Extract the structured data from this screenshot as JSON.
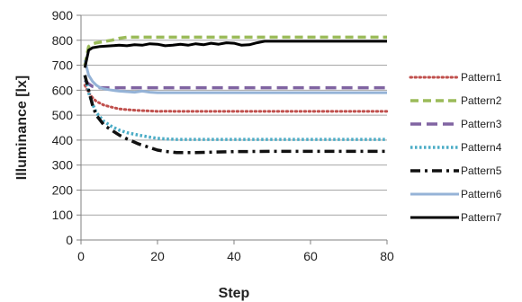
{
  "chart_data": {
    "type": "line",
    "xlabel": "Step",
    "ylabel": "Illuminance [lx]",
    "xlim": [
      0,
      80
    ],
    "ylim": [
      0,
      900
    ],
    "xticks": [
      0,
      20,
      40,
      60,
      80
    ],
    "yticks": [
      0,
      100,
      200,
      300,
      400,
      500,
      600,
      700,
      800,
      900
    ],
    "grid": "horizontal",
    "legend_position": "right",
    "series": [
      {
        "name": "Pattern1",
        "color": "#c0504d",
        "dash": "dotted",
        "x": [
          1,
          2,
          3,
          4,
          6,
          8,
          10,
          12,
          14,
          16,
          18,
          20,
          22,
          25,
          30,
          35,
          40,
          50,
          60,
          70,
          80
        ],
        "y": [
          620,
          590,
          570,
          555,
          540,
          532,
          525,
          522,
          520,
          518,
          517,
          515,
          516,
          515,
          515,
          515,
          515,
          515,
          515,
          515,
          515
        ]
      },
      {
        "name": "Pattern2",
        "color": "#9bbb59",
        "dash": "dashed",
        "x": [
          1,
          2,
          3,
          4,
          6,
          8,
          10,
          12,
          14,
          16,
          20,
          30,
          40,
          50,
          60,
          70,
          80
        ],
        "y": [
          700,
          775,
          785,
          790,
          795,
          800,
          808,
          812,
          812,
          812,
          812,
          812,
          812,
          812,
          812,
          812,
          812
        ]
      },
      {
        "name": "Pattern3",
        "color": "#8064a2",
        "dash": "longdash",
        "x": [
          1,
          2,
          3,
          4,
          5,
          6,
          8,
          10,
          20,
          30,
          40,
          50,
          60,
          70,
          80
        ],
        "y": [
          640,
          625,
          615,
          612,
          610,
          610,
          610,
          610,
          610,
          610,
          610,
          610,
          610,
          610,
          610
        ]
      },
      {
        "name": "Pattern4",
        "color": "#4bacc6",
        "dash": "dotted-thick",
        "x": [
          1,
          2,
          3,
          4,
          6,
          8,
          10,
          12,
          15,
          18,
          20,
          22,
          25,
          30,
          40,
          50,
          60,
          70,
          80
        ],
        "y": [
          660,
          590,
          545,
          510,
          475,
          455,
          440,
          430,
          420,
          412,
          407,
          405,
          403,
          403,
          403,
          403,
          403,
          403,
          403
        ]
      },
      {
        "name": "Pattern5",
        "color": "#111111",
        "dash": "dashdot",
        "x": [
          1,
          2,
          3,
          4,
          6,
          8,
          10,
          12,
          15,
          18,
          20,
          22,
          25,
          30,
          35,
          40,
          50,
          60,
          70,
          80
        ],
        "y": [
          660,
          600,
          540,
          500,
          460,
          440,
          420,
          405,
          385,
          370,
          360,
          355,
          350,
          350,
          352,
          354,
          355,
          355,
          355,
          355
        ]
      },
      {
        "name": "Pattern6",
        "color": "#95b3d7",
        "dash": "solid",
        "x": [
          1,
          2,
          3,
          4,
          5,
          6,
          8,
          10,
          12,
          14,
          16,
          18,
          20,
          25,
          30,
          40,
          50,
          60,
          70,
          80
        ],
        "y": [
          720,
          660,
          635,
          620,
          610,
          605,
          600,
          596,
          594,
          592,
          596,
          592,
          590,
          590,
          590,
          590,
          590,
          590,
          590,
          590
        ]
      },
      {
        "name": "Pattern7",
        "color": "#000000",
        "dash": "solid",
        "x": [
          1,
          2,
          3,
          5,
          8,
          10,
          12,
          14,
          16,
          18,
          20,
          22,
          24,
          26,
          28,
          30,
          32,
          34,
          36,
          38,
          40,
          42,
          44,
          46,
          48,
          50,
          60,
          70,
          80
        ],
        "y": [
          690,
          760,
          770,
          775,
          778,
          780,
          778,
          782,
          780,
          786,
          784,
          778,
          780,
          784,
          780,
          786,
          782,
          788,
          784,
          790,
          788,
          780,
          782,
          790,
          796,
          796,
          796,
          796,
          796
        ]
      }
    ]
  }
}
